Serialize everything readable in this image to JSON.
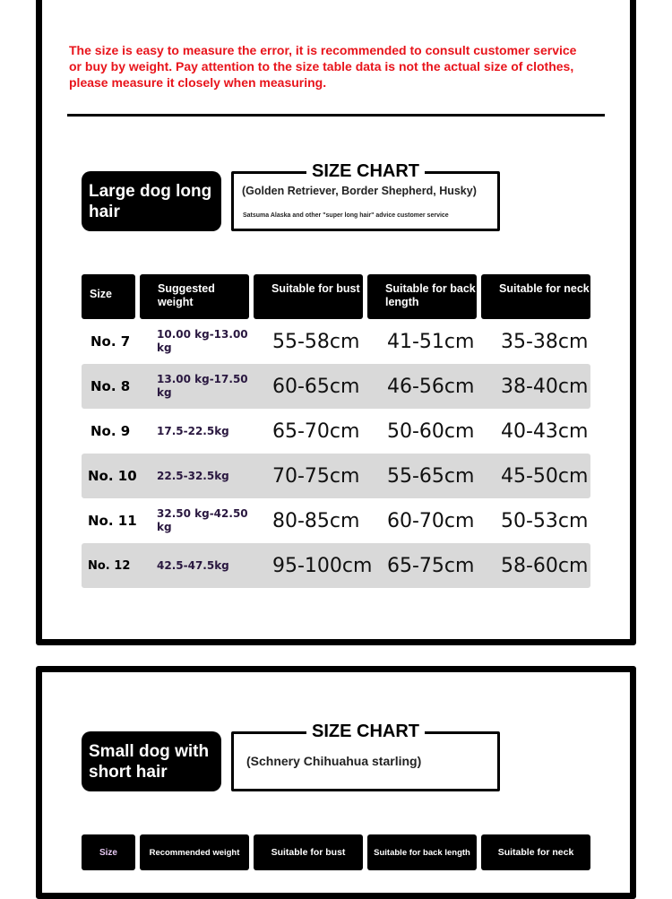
{
  "notice": "The size is easy to measure the error, it is recommended to consult customer service or buy by weight. Pay attention to the size table data is not the actual size of clothes, please measure it closely when measuring.",
  "large": {
    "badge": "Large dog long hair",
    "chart_title": "SIZE CHART",
    "breeds": "(Golden Retriever, Border Shepherd, Husky)",
    "note": "Satsuma Alaska and other \"super long hair\" advice customer service",
    "headers": [
      "Size",
      "Suggested weight",
      "Suitable for bust",
      "Suitable for back length",
      "Suitable for neck"
    ],
    "rows": [
      [
        "No. 7",
        "10.00 kg-13.00 kg",
        "55-58cm",
        "41-51cm",
        "35-38cm"
      ],
      [
        "No. 8",
        "13.00 kg-17.50 kg",
        "60-65cm",
        "46-56cm",
        "38-40cm"
      ],
      [
        "No. 9",
        "17.5-22.5kg",
        "65-70cm",
        "50-60cm",
        "40-43cm"
      ],
      [
        "No. 10",
        "22.5-32.5kg",
        "70-75cm",
        "55-65cm",
        "45-50cm"
      ],
      [
        "No. 11",
        "32.50 kg-42.50 kg",
        "80-85cm",
        "60-70cm",
        "50-53cm"
      ],
      [
        "No. 12",
        "42.5-47.5kg",
        "95-100cm",
        "65-75cm",
        "58-60cm"
      ]
    ]
  },
  "small": {
    "badge": "Small dog with short hair",
    "chart_title": "SIZE CHART",
    "breeds": "(Schnery Chihuahua starling)",
    "headers": [
      "Size",
      "Recommended weight",
      "Suitable for bust",
      "Suitable for back length",
      "Suitable for neck"
    ]
  }
}
